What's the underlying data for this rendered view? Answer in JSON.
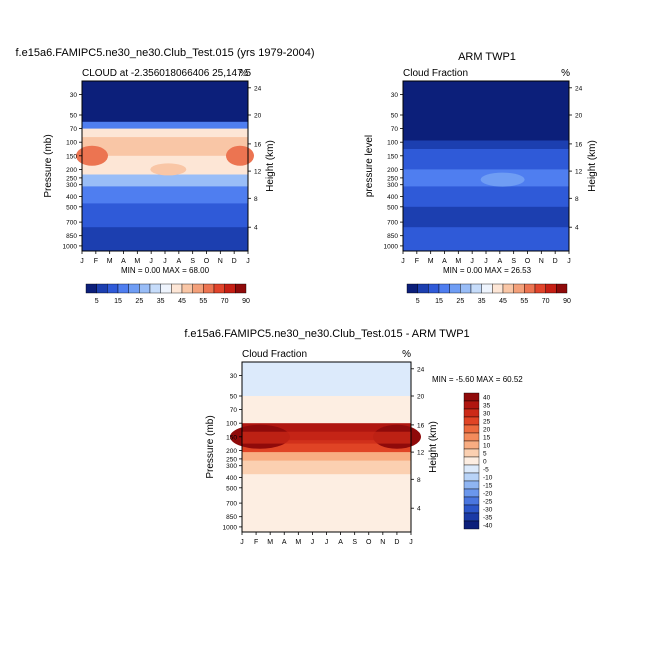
{
  "chart_data": [
    {
      "type": "heatmap",
      "title": "f.e15a6.FAMIPC5.ne30_ne30.Club_Test.015 (yrs 1979-2004)",
      "subtitle_left": "CLOUD at -2.356018066406 25,147.5",
      "subtitle_right": "%",
      "ylabel": "Pressure (mb)",
      "ylabel_right": "Height (km)",
      "x_ticks": [
        "J",
        "F",
        "M",
        "A",
        "M",
        "J",
        "J",
        "A",
        "S",
        "O",
        "N",
        "D",
        "J"
      ],
      "y_ticks": [
        "30",
        "50",
        "70",
        "100",
        "150",
        "200",
        "250",
        "300",
        "400",
        "500",
        "700",
        "850",
        "1000"
      ],
      "y_right_ticks": [
        "24",
        "20",
        "16",
        "12",
        "8",
        "4"
      ],
      "stats": "MIN =   0.00 MAX =  68.00",
      "colorbar_labels": [
        "5",
        "15",
        "25",
        "35",
        "45",
        "55",
        "70",
        "90"
      ],
      "min": 0.0,
      "max": 68.0
    },
    {
      "type": "heatmap",
      "title": "ARM TWP1",
      "subtitle_left": "Cloud Fraction",
      "subtitle_right": "%",
      "ylabel": "pressure level",
      "ylabel_right": "Height (km)",
      "x_ticks": [
        "J",
        "F",
        "M",
        "A",
        "M",
        "J",
        "J",
        "A",
        "S",
        "O",
        "N",
        "D",
        "J"
      ],
      "y_ticks": [
        "30",
        "50",
        "70",
        "100",
        "150",
        "200",
        "250",
        "300",
        "400",
        "500",
        "700",
        "850",
        "1000"
      ],
      "y_right_ticks": [
        "24",
        "20",
        "16",
        "12",
        "8",
        "4"
      ],
      "stats": "MIN =   0.00 MAX =  26.53",
      "colorbar_labels": [
        "5",
        "15",
        "25",
        "35",
        "45",
        "55",
        "70",
        "90"
      ],
      "min": 0.0,
      "max": 26.53
    },
    {
      "type": "heatmap",
      "title": "f.e15a6.FAMIPC5.ne30_ne30.Club_Test.015 - ARM TWP1",
      "subtitle_left": "Cloud Fraction",
      "subtitle_right": "%",
      "ylabel": "Pressure (mb)",
      "ylabel_right": "Height (km)",
      "x_ticks": [
        "J",
        "F",
        "M",
        "A",
        "M",
        "J",
        "J",
        "A",
        "S",
        "O",
        "N",
        "D",
        "J"
      ],
      "y_ticks": [
        "30",
        "50",
        "70",
        "100",
        "150",
        "200",
        "250",
        "300",
        "400",
        "500",
        "700",
        "850",
        "1000"
      ],
      "y_right_ticks": [
        "24",
        "20",
        "16",
        "12",
        "8",
        "4"
      ],
      "stats": "MIN =  -5.60 MAX =  60.52",
      "colorbar_labels": [
        "40",
        "35",
        "30",
        "25",
        "20",
        "15",
        "10",
        "5",
        "0",
        "-5",
        "-10",
        "-15",
        "-20",
        "-25",
        "-30",
        "-35",
        "-40"
      ],
      "min": -5.6,
      "max": 60.52
    }
  ],
  "colors": {
    "seq": [
      "#0c1f7a",
      "#1c3fb0",
      "#2f5ad8",
      "#4f7ef0",
      "#6f9df4",
      "#99bdf7",
      "#c6dcfa",
      "#eef4fd",
      "#fde6d6",
      "#f9c6a6",
      "#f3a07a",
      "#ec7451",
      "#e1442b",
      "#c61f14",
      "#8f0a0a"
    ],
    "div": [
      "#8f0a0a",
      "#b01610",
      "#cc2a18",
      "#e04425",
      "#ec6a3e",
      "#f38b5c",
      "#f8ad82",
      "#fbd0b1",
      "#fdeee2",
      "#dceafb",
      "#b8d3f7",
      "#8fb5f2",
      "#6b97ec",
      "#4a76df",
      "#2c56c9",
      "#1a3aa6",
      "#0c1f7a"
    ]
  }
}
